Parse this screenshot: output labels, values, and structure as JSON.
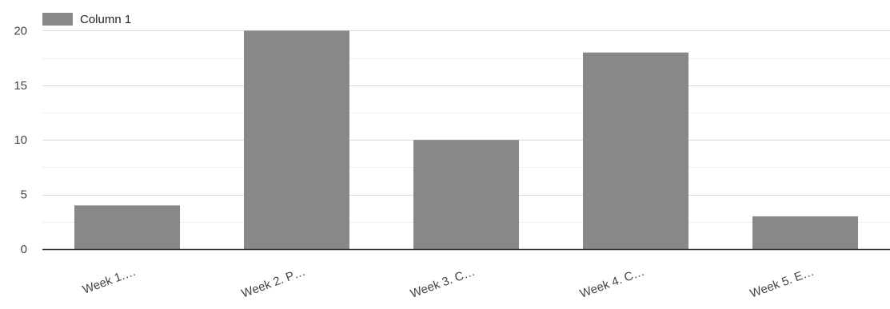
{
  "chart_data": {
    "type": "bar",
    "categories": [
      "Week 1.…",
      "Week 2. P…",
      "Week 3. C…",
      "Week 4. C…",
      "Week 5. E…"
    ],
    "series": [
      {
        "name": "Column 1",
        "values": [
          4,
          20,
          10,
          18,
          3
        ]
      }
    ],
    "ylim": [
      0,
      22
    ],
    "yticks": [
      0,
      5,
      10,
      15,
      20
    ],
    "grid": true,
    "legend_position": "top-left",
    "colors": {
      "bar": "#888888",
      "grid_major": "#d9d9d9",
      "grid_minor": "#efefef",
      "axis": "#333333"
    }
  }
}
